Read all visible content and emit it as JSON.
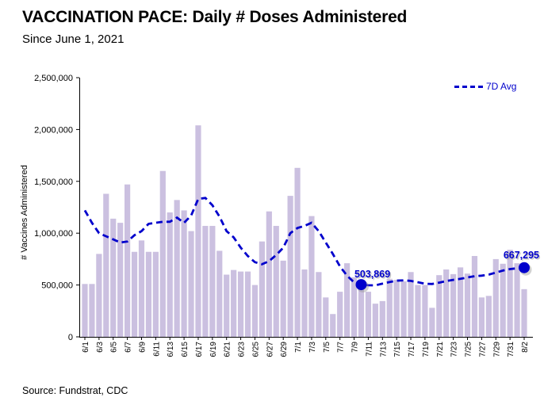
{
  "header": {
    "title": "VACCINATION PACE: Daily # Doses Administered",
    "subtitle": "Since June 1, 2021"
  },
  "legend": {
    "label": "7D Avg"
  },
  "source": {
    "text": "Source: Fundstrat, CDC"
  },
  "y_axis": {
    "title": "# Vaccines Administered",
    "tick_labels": [
      "0",
      "500,000",
      "1,000,000",
      "1,500,000",
      "2,000,000",
      "2,500,000"
    ]
  },
  "annotations": [
    {
      "label": "503,869",
      "date": "7/10",
      "value": 503869
    },
    {
      "label": "667,295",
      "date": "8/2",
      "value": 667295
    }
  ],
  "colors": {
    "bar": "#cbc0e0",
    "line": "#0000cc",
    "annotation_text": "#0000cc",
    "axis": "#000000",
    "shadow": "#9a9a9a"
  },
  "chart_data": {
    "type": "bar",
    "title": "VACCINATION PACE: Daily # Doses Administered",
    "xlabel": "",
    "ylabel": "# Vaccines Administered",
    "ylim": [
      0,
      2500000
    ],
    "grid": false,
    "legend_position": "top-right",
    "x_tick_every": 2,
    "categories": [
      "6/1",
      "6/2",
      "6/3",
      "6/4",
      "6/5",
      "6/6",
      "6/7",
      "6/8",
      "6/9",
      "6/10",
      "6/11",
      "6/12",
      "6/13",
      "6/14",
      "6/15",
      "6/16",
      "6/17",
      "6/18",
      "6/19",
      "6/20",
      "6/21",
      "6/22",
      "6/23",
      "6/24",
      "6/25",
      "6/26",
      "6/27",
      "6/28",
      "6/29",
      "6/30",
      "7/1",
      "7/2",
      "7/3",
      "7/4",
      "7/5",
      "7/6",
      "7/7",
      "7/8",
      "7/9",
      "7/10",
      "7/11",
      "7/12",
      "7/13",
      "7/14",
      "7/15",
      "7/16",
      "7/17",
      "7/18",
      "7/19",
      "7/20",
      "7/21",
      "7/22",
      "7/23",
      "7/24",
      "7/25",
      "7/26",
      "7/27",
      "7/28",
      "7/29",
      "7/30",
      "7/31",
      "8/1",
      "8/2"
    ],
    "series": [
      {
        "name": "Daily # Doses Administered",
        "type": "bar",
        "values": [
          510000,
          510000,
          800000,
          1380000,
          1140000,
          1100000,
          1470000,
          820000,
          930000,
          820000,
          820000,
          1600000,
          1200000,
          1320000,
          1220000,
          1020000,
          2040000,
          1070000,
          1070000,
          830000,
          600000,
          645000,
          630000,
          630000,
          500000,
          920000,
          1210000,
          1070000,
          735000,
          1360000,
          1630000,
          650000,
          1165000,
          625000,
          380000,
          220000,
          435000,
          710000,
          575000,
          500000,
          435000,
          320000,
          345000,
          560000,
          550000,
          535000,
          625000,
          500000,
          500000,
          280000,
          595000,
          650000,
          605000,
          670000,
          610000,
          780000,
          380000,
          395000,
          750000,
          705000,
          840000,
          710000,
          460000
        ]
      },
      {
        "name": "7D Avg",
        "type": "line",
        "values": [
          1220000,
          1100000,
          1000000,
          970000,
          940000,
          910000,
          920000,
          980000,
          1020000,
          1090000,
          1100000,
          1110000,
          1110000,
          1150000,
          1100000,
          1170000,
          1330000,
          1340000,
          1270000,
          1160000,
          1020000,
          960000,
          860000,
          780000,
          720000,
          700000,
          730000,
          790000,
          860000,
          1000000,
          1050000,
          1070000,
          1100000,
          1020000,
          910000,
          800000,
          680000,
          590000,
          525000,
          503869,
          498000,
          497000,
          513000,
          528000,
          542000,
          545000,
          540000,
          527000,
          512000,
          510000,
          523000,
          538000,
          550000,
          560000,
          573000,
          585000,
          590000,
          600000,
          620000,
          639000,
          654000,
          661000,
          667295
        ]
      }
    ]
  }
}
